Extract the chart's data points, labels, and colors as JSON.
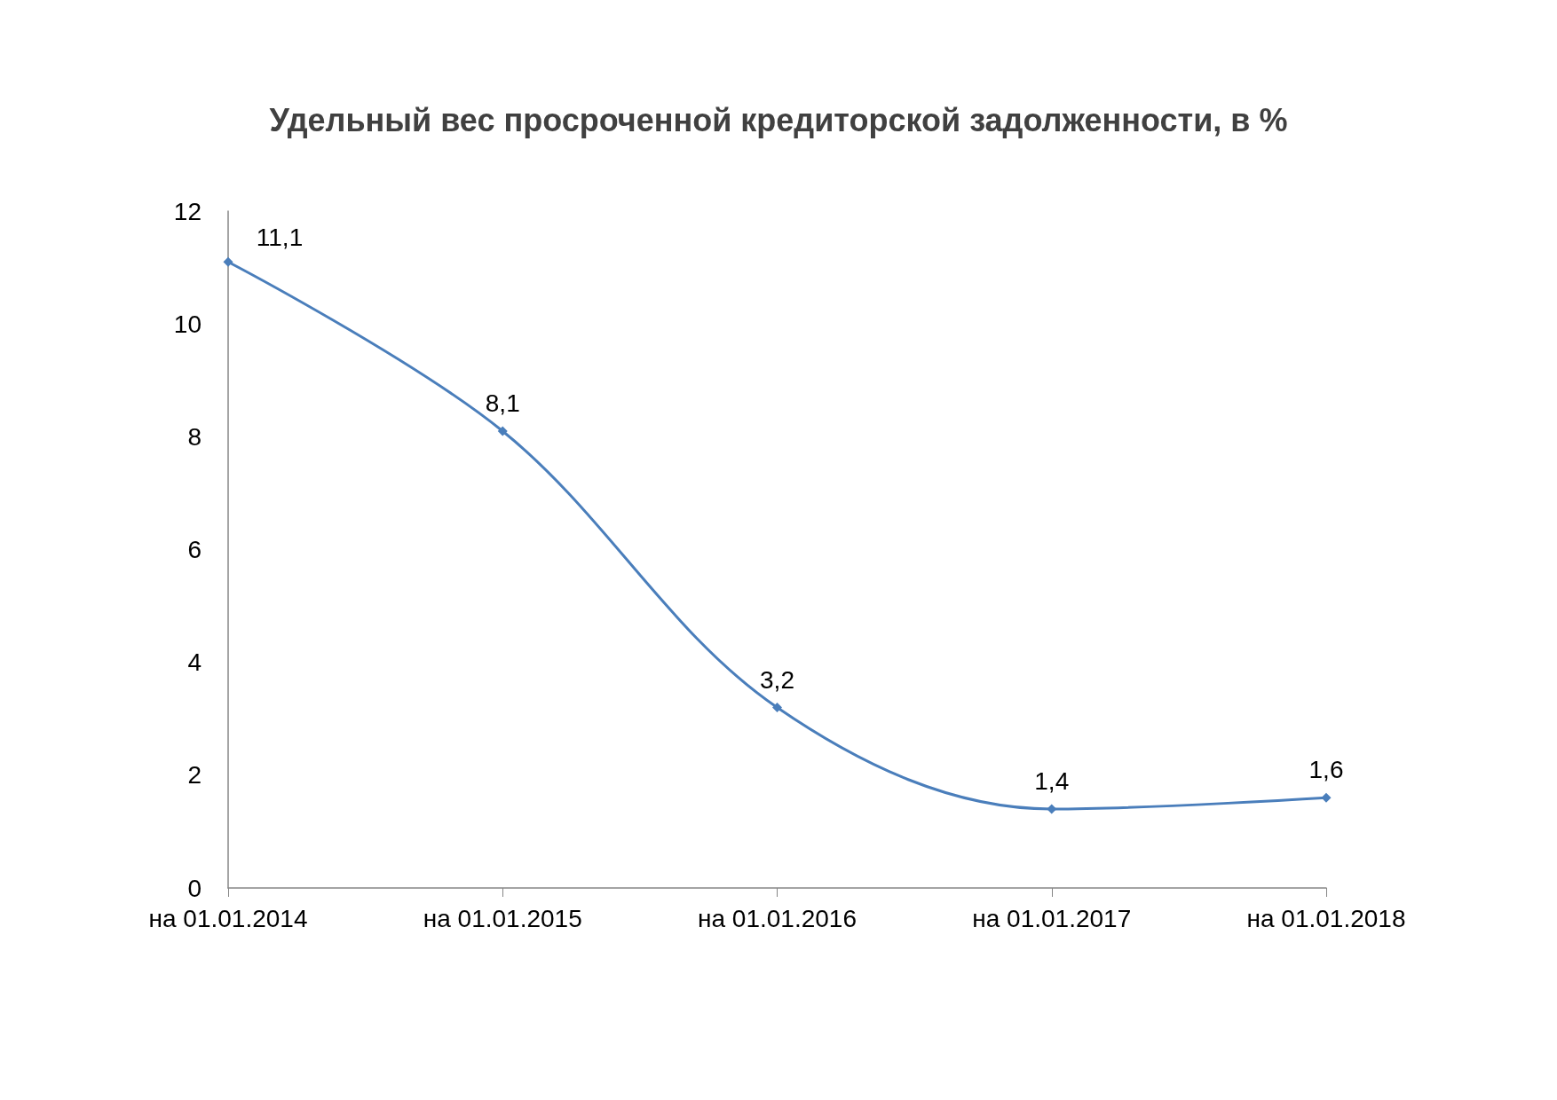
{
  "chart_data": {
    "type": "line",
    "title": "Удельный вес просроченной кредиторской задолженности, в %",
    "categories": [
      "на 01.01.2014",
      "на 01.01.2015",
      "на 01.01.2016",
      "на 01.01.2017",
      "на 01.01.2018"
    ],
    "series": [
      {
        "color": "#4a7ebb",
        "values": [
          11.1,
          8.1,
          3.2,
          1.4,
          1.6
        ],
        "value_labels": [
          "11,1",
          "8,1",
          "3,2",
          "1,4",
          "1,6"
        ]
      }
    ],
    "ylim": [
      0,
      12
    ],
    "yticks": [
      0,
      2,
      4,
      6,
      8,
      10,
      12
    ],
    "grid": false,
    "marker": "diamond",
    "line_style": "solid"
  }
}
